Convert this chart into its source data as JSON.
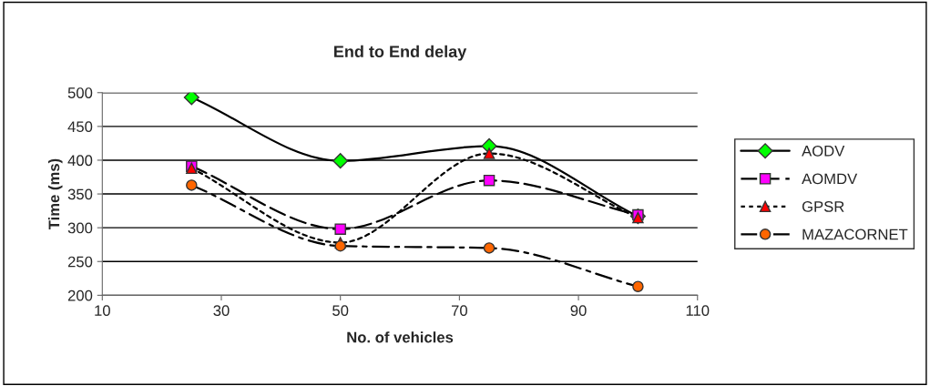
{
  "chart_data": {
    "type": "line",
    "title": "End to End delay",
    "xlabel": "No. of vehicles",
    "ylabel": "Time (ms)",
    "x": [
      25,
      50,
      75,
      100
    ],
    "series": [
      {
        "name": "AODV",
        "color": "#000000",
        "colors": [
          "#00ff00",
          "#00ff00",
          "#00ff00",
          "#00ff00"
        ],
        "marker": "diamond",
        "line_style": "solid",
        "values": [
          493,
          399,
          421,
          317
        ]
      },
      {
        "name": "AOMDV",
        "color": "#000000",
        "colors": [
          "#ff00ff",
          "#ff00ff",
          "#ff00ff",
          "#ff00ff"
        ],
        "marker": "square",
        "line_style": "dashed",
        "values": [
          391,
          298,
          370,
          319
        ]
      },
      {
        "name": "GPSR",
        "color": "#000000",
        "colors": [
          "#ff0000",
          "#ff0000",
          "#ff0000",
          "#ff0000"
        ],
        "marker": "triangle",
        "line_style": "dotted",
        "values": [
          388,
          278,
          410,
          315
        ]
      },
      {
        "name": "MAZACORNET",
        "color": "#000000",
        "colors": [
          "#ff6600",
          "#ff6600",
          "#ff6600",
          "#ff6600"
        ],
        "marker": "circle",
        "line_style": "dashdot",
        "values": [
          363,
          273,
          270,
          213
        ]
      }
    ],
    "xlim": [
      10,
      110
    ],
    "xticks": [
      10,
      30,
      50,
      70,
      90,
      110
    ],
    "ylim": [
      200,
      500
    ],
    "yticks": [
      200,
      250,
      300,
      350,
      400,
      450,
      500
    ],
    "grid": "y",
    "legend": "right"
  }
}
